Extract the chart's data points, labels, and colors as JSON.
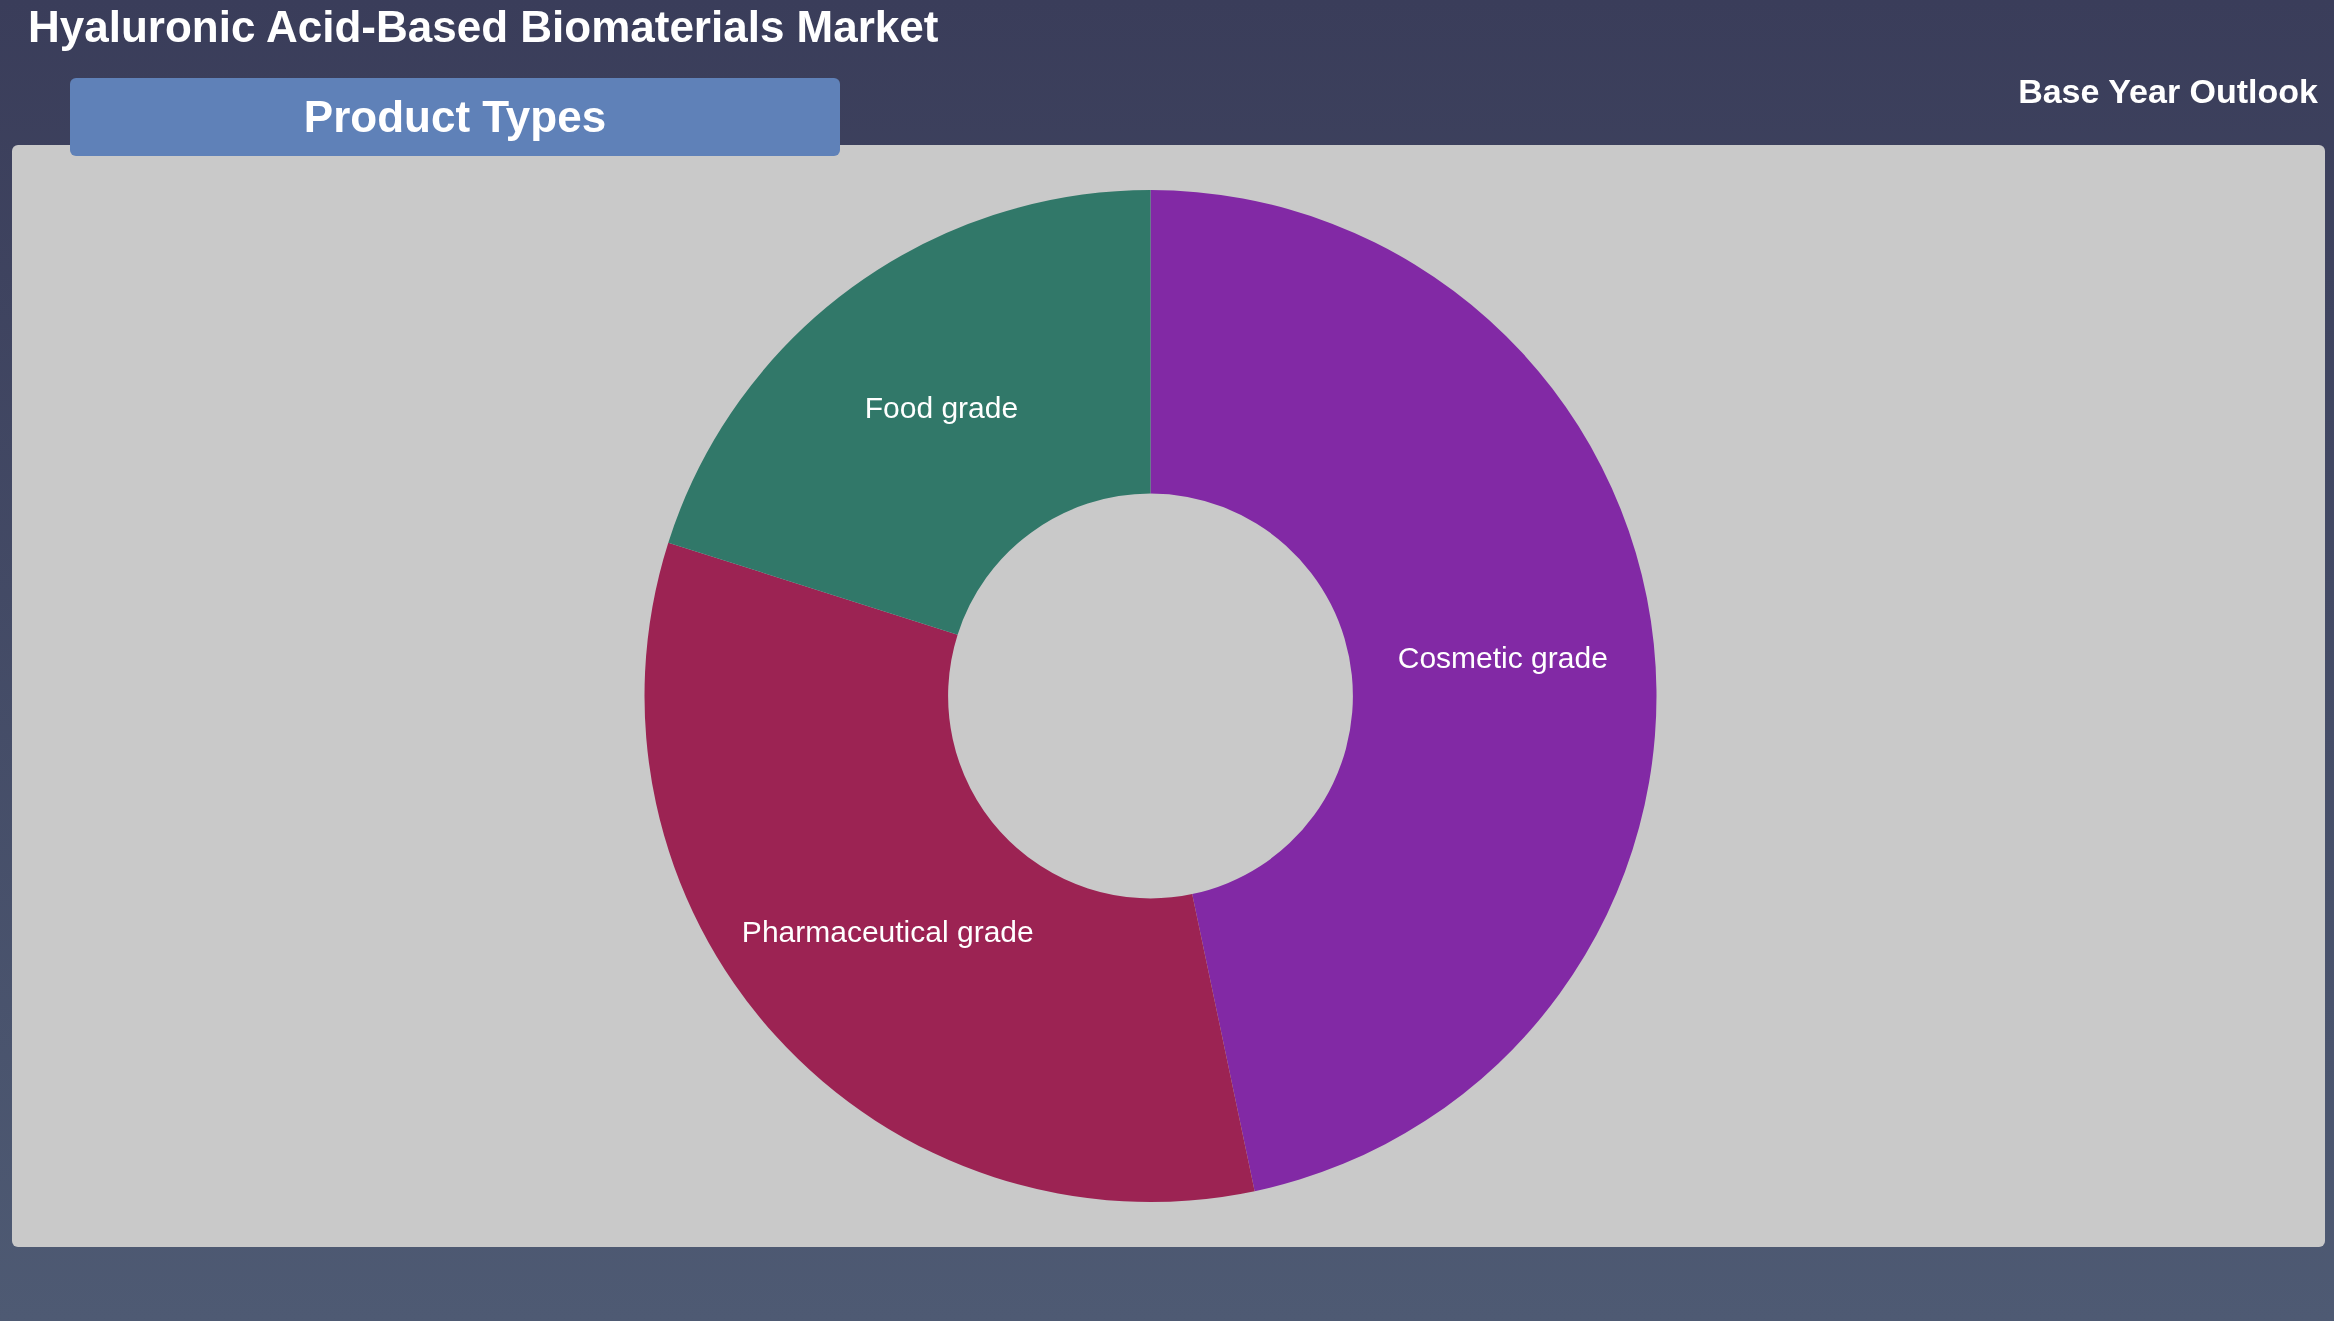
{
  "chart_data": {
    "type": "donut",
    "title": "Hyaluronic Acid-Based Biomaterials Market",
    "subtitle": "Product Types",
    "annotations": [
      "Base Year Outlook"
    ],
    "categories": [
      "Cosmetic grade",
      "Pharmaceutical grade",
      "Food grade"
    ],
    "values": [
      46.7,
      33.2,
      20.1
    ],
    "colors": [
      "#8229a5",
      "#9c2353",
      "#317869"
    ],
    "legend": false
  }
}
